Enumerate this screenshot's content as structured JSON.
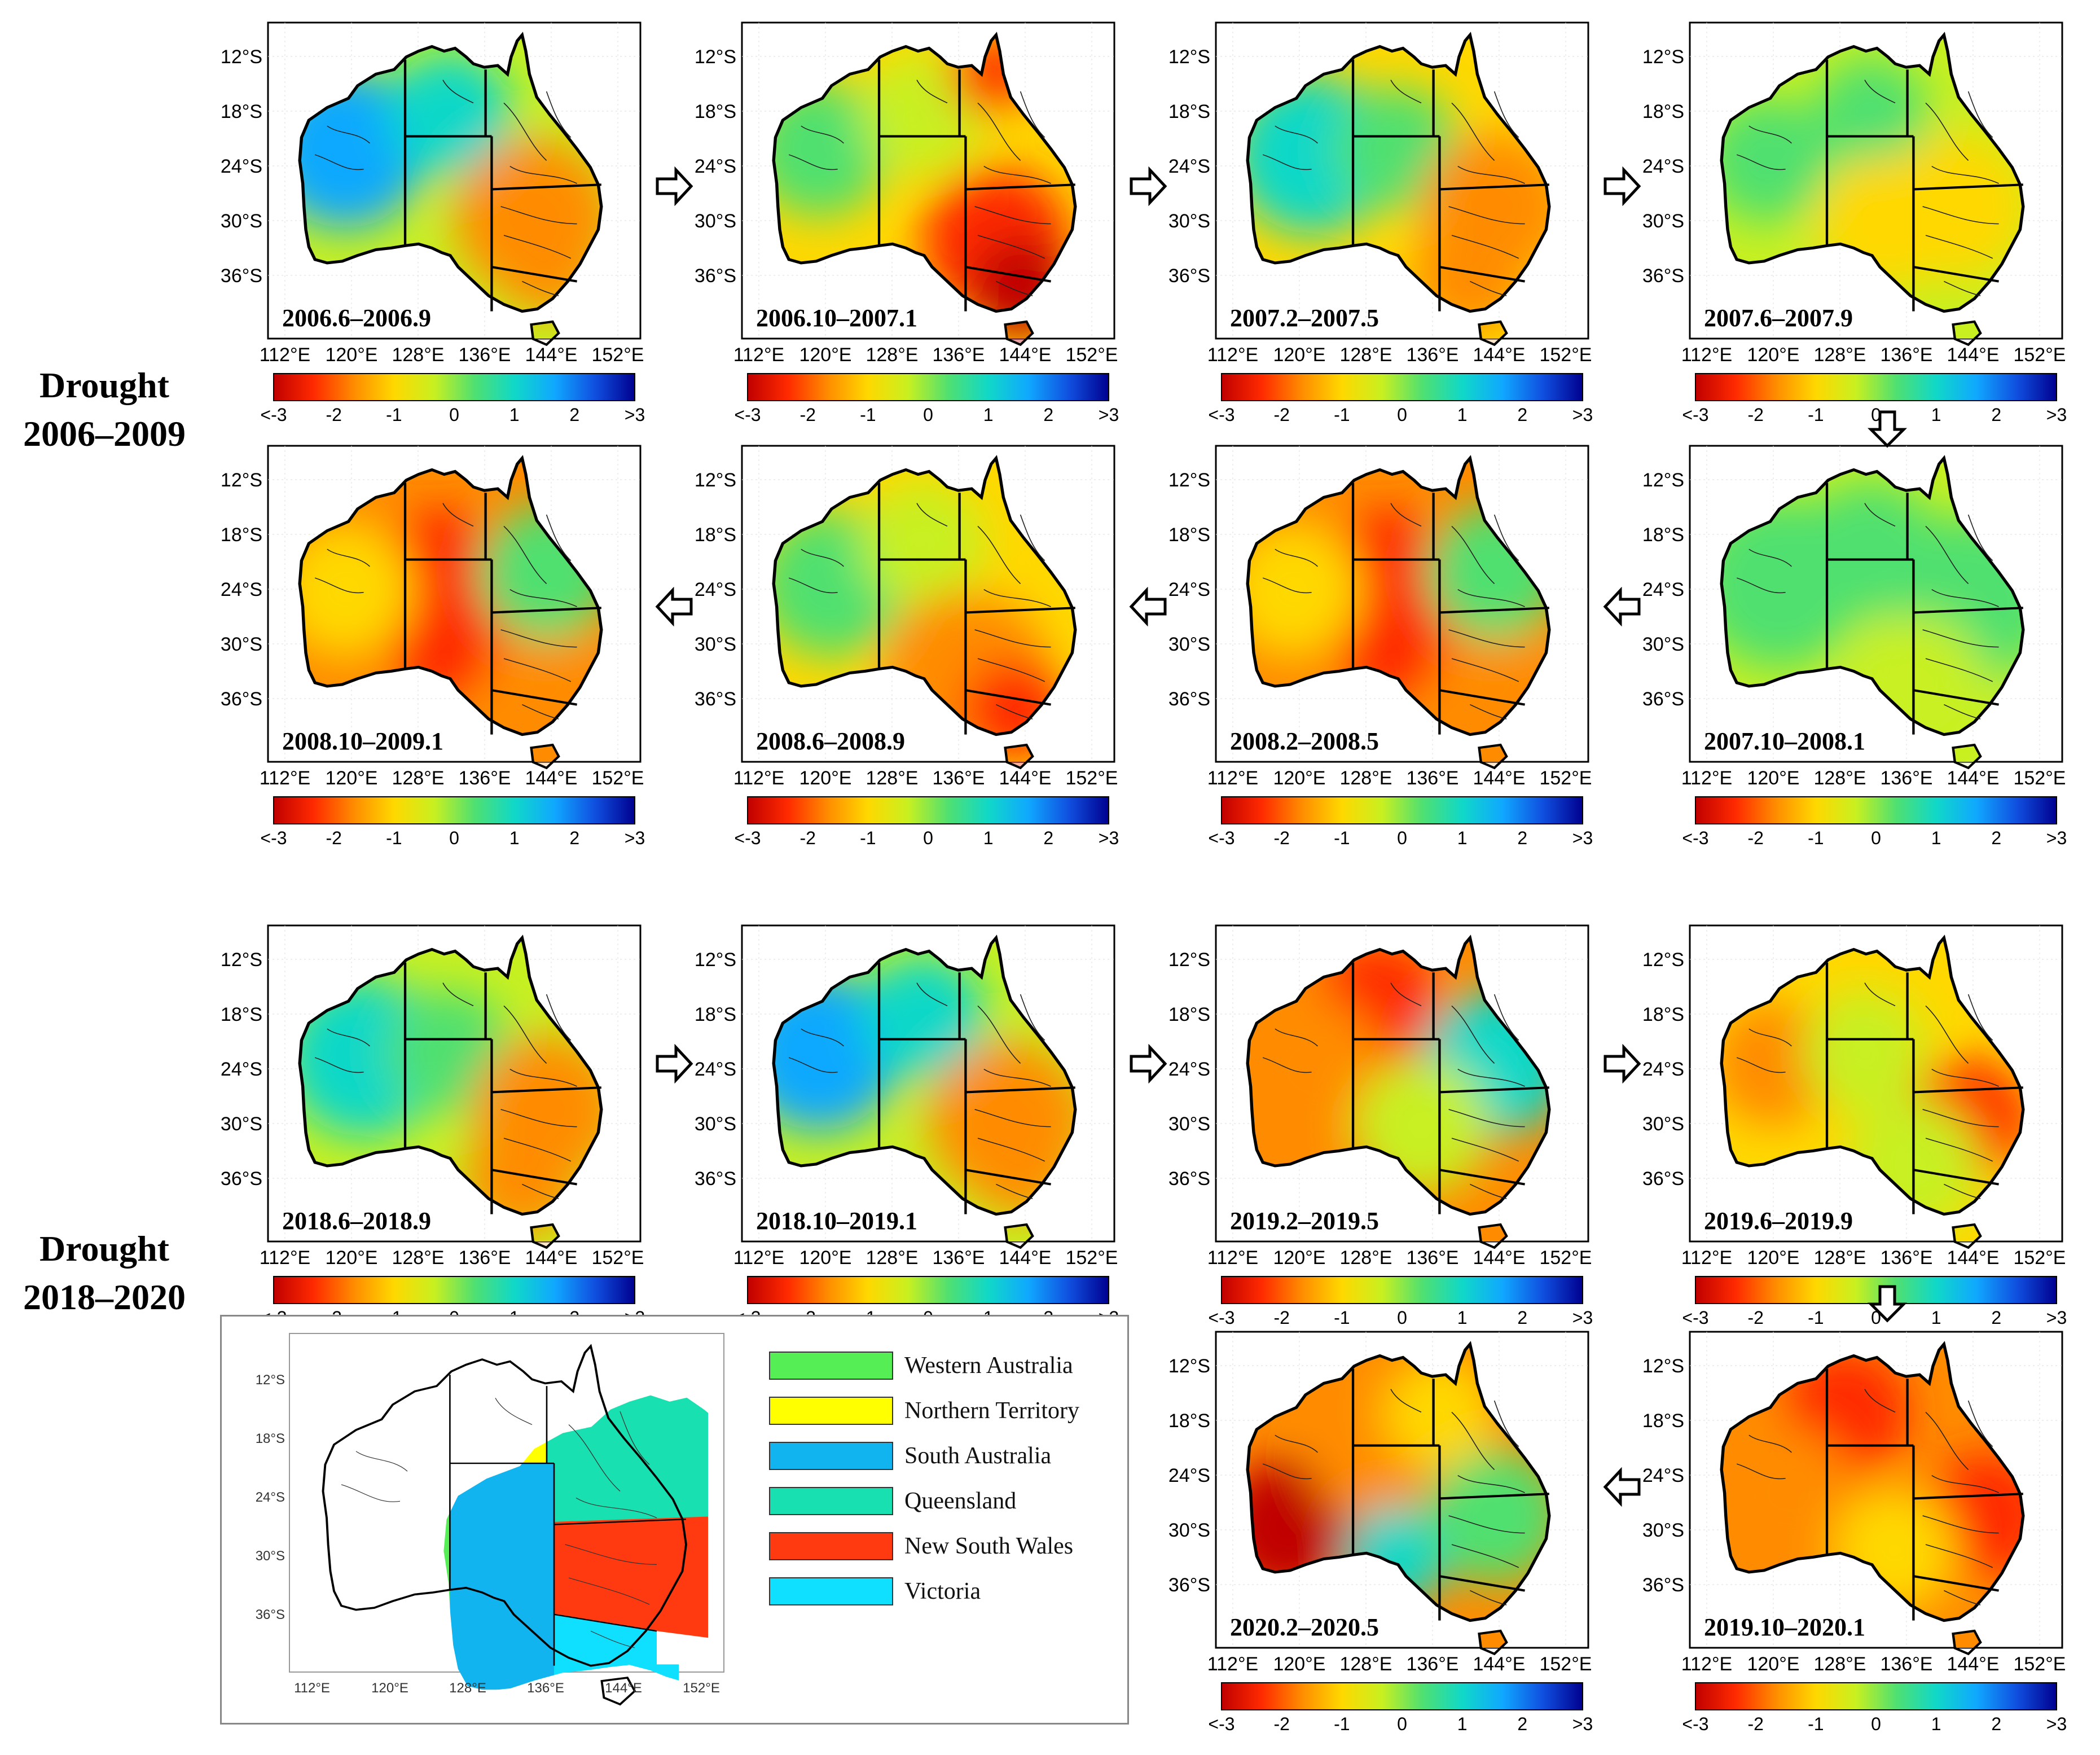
{
  "axes": {
    "lat_ticks": [
      "12°S",
      "18°S",
      "24°S",
      "30°S",
      "36°S"
    ],
    "lon_ticks": [
      "112°E",
      "120°E",
      "128°E",
      "136°E",
      "144°E",
      "152°E"
    ],
    "colorbar_ticks": [
      "<-3",
      "-2",
      "-1",
      "0",
      "1",
      "2",
      ">3"
    ]
  },
  "groups": {
    "drought1": {
      "line1": "Drought",
      "line2": "2006–2009"
    },
    "drought2": {
      "line1": "Drought",
      "line2": "2018–2020"
    }
  },
  "panels": [
    {
      "id": "p1",
      "period": "2006.6–2006.9",
      "dryness": "low",
      "pattern": "west-blue"
    },
    {
      "id": "p2",
      "period": "2006.10–2007.1",
      "dryness": "mid",
      "pattern": "southeast-red"
    },
    {
      "id": "p3",
      "period": "2007.2–2007.5",
      "dryness": "mid",
      "pattern": "east-orange"
    },
    {
      "id": "p4",
      "period": "2007.6–2007.9",
      "dryness": "low",
      "pattern": "mixed"
    },
    {
      "id": "p5",
      "period": "2008.10–2009.1",
      "dryness": "high",
      "pattern": "center-red"
    },
    {
      "id": "p6",
      "period": "2008.6–2008.9",
      "dryness": "mid",
      "pattern": "south-red"
    },
    {
      "id": "p7",
      "period": "2008.2–2008.5",
      "dryness": "high",
      "pattern": "center-red"
    },
    {
      "id": "p8",
      "period": "2007.10–2008.1",
      "dryness": "low",
      "pattern": "green"
    },
    {
      "id": "p9",
      "period": "2018.6–2018.9",
      "dryness": "low",
      "pattern": "east-orange"
    },
    {
      "id": "p10",
      "period": "2018.10–2019.1",
      "dryness": "low",
      "pattern": "west-blue"
    },
    {
      "id": "p11",
      "period": "2019.2–2019.5",
      "dryness": "high",
      "pattern": "north-red"
    },
    {
      "id": "p12",
      "period": "2019.6–2019.9",
      "dryness": "mid",
      "pattern": "east-red"
    },
    {
      "id": "p13",
      "period": "2019.10–2020.1",
      "dryness": "high",
      "pattern": "north-east-red"
    },
    {
      "id": "p14",
      "period": "2020.2–2020.5",
      "dryness": "high",
      "pattern": "southwest-red"
    }
  ],
  "colorbar": {
    "colors": [
      "#c00000",
      "#ff2a00",
      "#ff8c00",
      "#ffd800",
      "#c8f020",
      "#50e070",
      "#10d8c8",
      "#10a8ff",
      "#1050e0",
      "#000090"
    ]
  },
  "legend": {
    "items": [
      {
        "label": "Western Australia",
        "color": "#55ef55"
      },
      {
        "label": "Northern Territory",
        "color": "#ffff00"
      },
      {
        "label": "South Australia",
        "color": "#12b4f0"
      },
      {
        "label": "Queensland",
        "color": "#18e0b0"
      },
      {
        "label": "New South Wales",
        "color": "#ff3a10"
      },
      {
        "label": "Victoria",
        "color": "#10e0ff"
      }
    ],
    "lat_ticks": [
      "12°S",
      "18°S",
      "24°S",
      "30°S",
      "36°S"
    ],
    "lon_ticks": [
      "112°E",
      "120°E",
      "128°E",
      "136°E",
      "144°E",
      "152°E"
    ]
  }
}
